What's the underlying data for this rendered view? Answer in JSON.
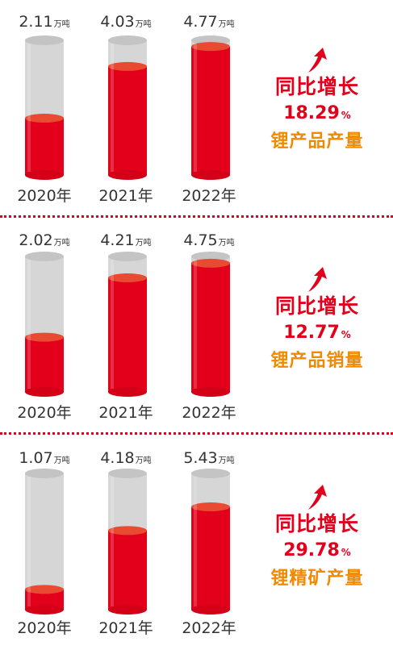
{
  "colors": {
    "accent": "#e3001b",
    "orange": "#f08a00",
    "glass": "#d6d6d6"
  },
  "chart_data": [
    {
      "type": "bar",
      "categories": [
        "2020年",
        "2021年",
        "2022年"
      ],
      "values": [
        2.11,
        4.03,
        4.77
      ],
      "value_labels": [
        "2.11",
        "4.03",
        "4.77"
      ],
      "unit": "万吨",
      "growth_title": "同比增长",
      "growth_value": "18.29",
      "growth_unit": "%",
      "subject": "锂产品产量",
      "ylim": [
        0,
        5.0
      ]
    },
    {
      "type": "bar",
      "categories": [
        "2020年",
        "2021年",
        "2022年"
      ],
      "values": [
        2.02,
        4.21,
        4.75
      ],
      "value_labels": [
        "2.02",
        "4.21",
        "4.75"
      ],
      "unit": "万吨",
      "growth_title": "同比增长",
      "growth_value": "12.77",
      "growth_unit": "%",
      "subject": "锂产品销量",
      "ylim": [
        0,
        5.0
      ]
    },
    {
      "type": "bar",
      "categories": [
        "2020年",
        "2021年",
        "2022年"
      ],
      "values": [
        1.07,
        4.18,
        5.43
      ],
      "value_labels": [
        "1.07",
        "4.18",
        "5.43"
      ],
      "unit": "万吨",
      "growth_title": "同比增长",
      "growth_value": "29.78",
      "growth_unit": "%",
      "subject": "锂精矿产量",
      "ylim": [
        0,
        7.2
      ]
    }
  ]
}
